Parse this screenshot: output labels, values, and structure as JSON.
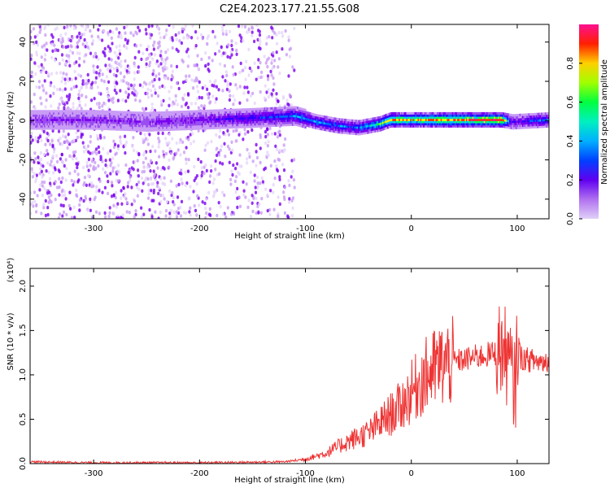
{
  "figure_title": "C2E4.2023.177.21.55.G08",
  "colors": {
    "snr_line": "#ee3333",
    "axis": "#000000",
    "colormap": [
      "#e6d6fa",
      "#c99cf5",
      "#9a4df0",
      "#7a00f0",
      "#3000ff",
      "#0066ff",
      "#00c8ff",
      "#00ff60",
      "#ffee00",
      "#ff3000",
      "#ff1070"
    ]
  },
  "chart_data": [
    {
      "type": "heatmap",
      "xlabel": "Height of straight line (km)",
      "ylabel": "Frequency (Hz)",
      "xlim": [
        -360,
        130
      ],
      "ylim": [
        -50,
        49
      ],
      "xticks": [
        -300,
        -200,
        -100,
        0,
        100
      ],
      "yticks": [
        -40,
        -20,
        0,
        20,
        40
      ],
      "colorbar": {
        "label": "Normalized spectral amplitude",
        "range": [
          0.0,
          1.0
        ],
        "ticks": [
          0.0,
          0.2,
          0.4,
          0.6,
          0.8
        ]
      },
      "ridge": {
        "description_points_height_km": [
          -360,
          -300,
          -250,
          -200,
          -150,
          -110,
          -90,
          -70,
          -50,
          -30,
          -20,
          0,
          50,
          85,
          95,
          130
        ],
        "frequency_hz": [
          1,
          1,
          0,
          1,
          2,
          3,
          0,
          -2,
          -3,
          -1,
          1,
          1,
          1,
          1,
          0,
          1
        ],
        "amplitude": [
          0.25,
          0.25,
          0.25,
          0.3,
          0.4,
          0.5,
          0.55,
          0.5,
          0.5,
          0.7,
          0.85,
          0.8,
          0.9,
          0.95,
          0.3,
          0.55
        ]
      },
      "grid": false
    },
    {
      "type": "line",
      "xlabel": "Height of straight line (km)",
      "ylabel": "SNR (10 * v/v)",
      "y_multiplier": "(x10⁴)",
      "xlim": [
        -360,
        130
      ],
      "ylim": [
        0,
        2.2
      ],
      "xticks": [
        -300,
        -200,
        -100,
        0,
        100
      ],
      "yticks": [
        0.0,
        0.5,
        1.0,
        1.5,
        2.0
      ],
      "series": [
        {
          "x": [
            -360,
            -300,
            -200,
            -120,
            -100,
            -80,
            -60,
            -40,
            -30,
            -20,
            -10,
            0,
            10,
            20,
            30,
            40,
            50,
            60,
            70,
            80,
            85,
            90,
            95,
            98,
            100,
            103,
            110,
            120,
            130
          ],
          "y": [
            0.02,
            0.01,
            0.01,
            0.02,
            0.05,
            0.12,
            0.25,
            0.35,
            0.45,
            0.55,
            0.65,
            0.8,
            0.95,
            1.05,
            1.12,
            1.15,
            1.17,
            1.2,
            1.22,
            1.25,
            1.3,
            1.2,
            1.0,
            0.8,
            1.4,
            1.2,
            1.17,
            1.15,
            1.15
          ]
        }
      ],
      "grid": false
    }
  ]
}
